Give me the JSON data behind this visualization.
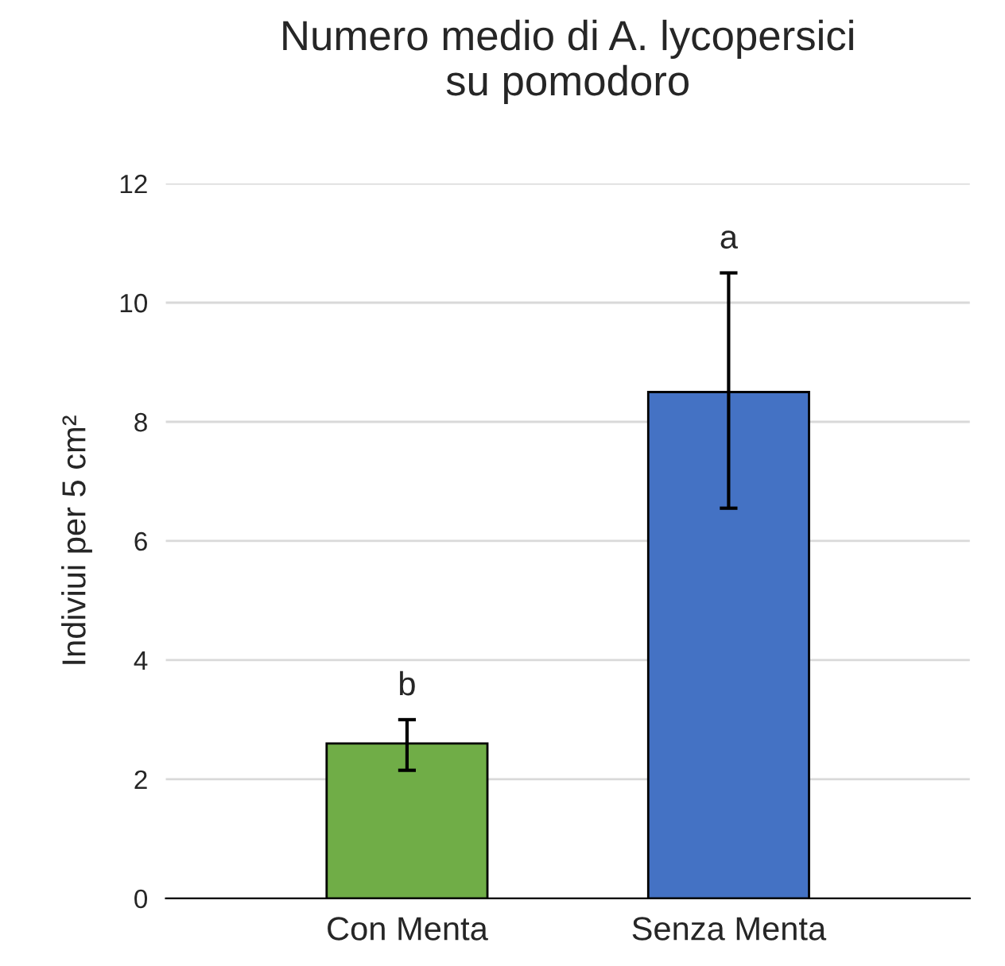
{
  "chart_data": {
    "type": "bar",
    "title": "Numero medio di A. lycopersici\nsu pomodoro",
    "ylabel": "Indiviui per 5 cm²",
    "categories": [
      "Con Menta",
      "Senza Menta"
    ],
    "values": [
      2.6,
      8.5
    ],
    "colors": [
      "#70ad47",
      "#4472c4"
    ],
    "errors": [
      [
        2.15,
        3.0
      ],
      [
        6.55,
        10.5
      ]
    ],
    "ylim": [
      0,
      12
    ],
    "yticks": [
      0,
      2,
      4,
      6,
      8,
      10,
      12
    ],
    "grid": "y",
    "annotations": [
      {
        "text": "b",
        "x": "Con Menta",
        "y": 3.0
      },
      {
        "text": "a",
        "x": "Senza Menta",
        "y": 10.5
      }
    ]
  }
}
